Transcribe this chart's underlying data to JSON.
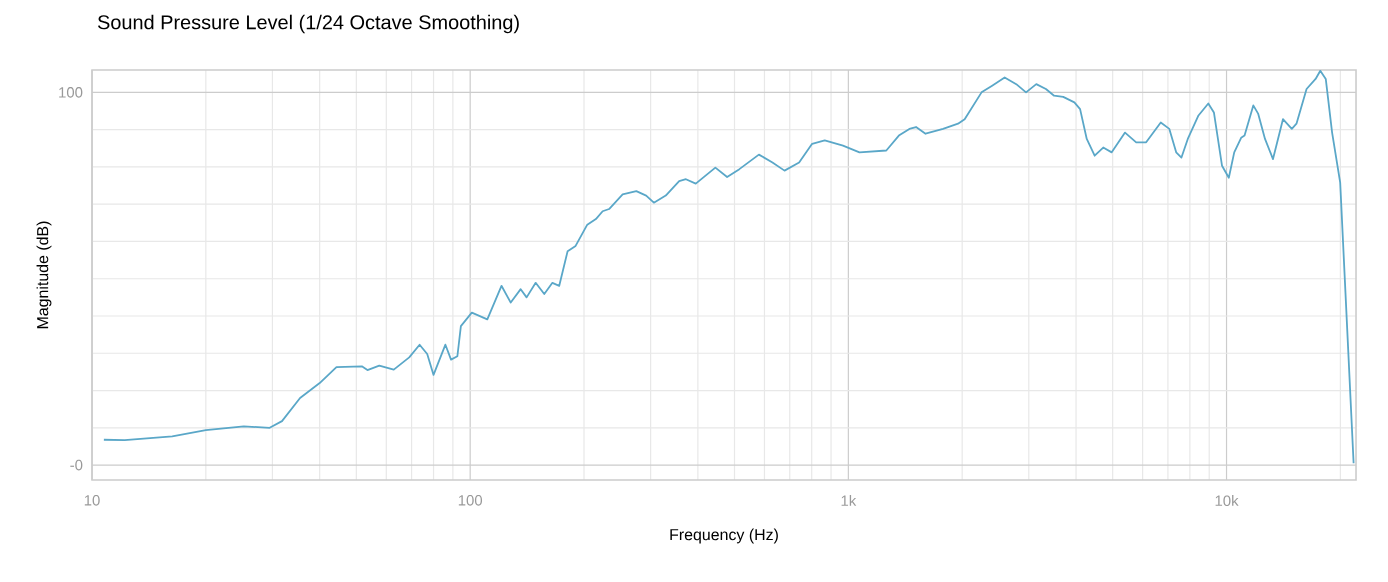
{
  "chart_data": {
    "type": "line",
    "title": "Sound Pressure Level (1/24 Octave Smoothing)",
    "xlabel": "Frequency (Hz)",
    "ylabel": "Magnitude (dB)",
    "log": "x",
    "grid": true,
    "xlim": [
      10,
      22000
    ],
    "ylim": [
      -4,
      106
    ],
    "xticks": [
      10,
      {
        "value": 20,
        "label": null
      },
      {
        "value": 30,
        "label": null
      },
      {
        "value": 40,
        "label": null
      },
      {
        "value": 50,
        "label": null
      },
      {
        "value": 60,
        "label": null
      },
      {
        "value": 70,
        "label": null
      },
      {
        "value": 80,
        "label": null
      },
      {
        "value": 90,
        "label": null
      },
      100,
      {
        "value": 200,
        "label": null
      },
      {
        "value": 300,
        "label": null
      },
      {
        "value": 400,
        "label": null
      },
      {
        "value": 500,
        "label": null
      },
      {
        "value": 600,
        "label": null
      },
      {
        "value": 700,
        "label": null
      },
      {
        "value": 800,
        "label": null
      },
      {
        "value": 900,
        "label": null
      },
      {
        "value": 1000,
        "label": "1k"
      },
      {
        "value": 2000,
        "label": null
      },
      {
        "value": 3000,
        "label": null
      },
      {
        "value": 4000,
        "label": null
      },
      {
        "value": 5000,
        "label": null
      },
      {
        "value": 6000,
        "label": null
      },
      {
        "value": 7000,
        "label": null
      },
      {
        "value": 8000,
        "label": null
      },
      {
        "value": 9000,
        "label": null
      },
      {
        "value": 10000,
        "label": "10k"
      },
      {
        "value": 20000,
        "label": null
      }
    ],
    "yticks": [
      {
        "value": 0,
        "label": "-0"
      },
      {
        "value": 10,
        "label": null
      },
      {
        "value": 20,
        "label": null
      },
      {
        "value": 30,
        "label": null
      },
      {
        "value": 40,
        "label": null
      },
      {
        "value": 50,
        "label": null
      },
      {
        "value": 60,
        "label": null
      },
      {
        "value": 70,
        "label": null
      },
      {
        "value": 80,
        "label": null
      },
      {
        "value": 90,
        "label": null
      },
      100
    ],
    "marker": "none",
    "line_style": "solid",
    "series": [
      {
        "color": "#5aa7c8",
        "x": [
          10.75,
          12.2,
          16.3,
          20,
          25.2,
          29.5,
          31.8,
          35.5,
          40,
          44.3,
          51.7,
          53.5,
          57.5,
          62.8,
          69,
          73.5,
          77,
          80,
          86,
          89,
          92.5,
          94.5,
          101,
          111,
          121,
          128,
          136,
          141,
          149,
          157,
          165,
          172,
          181,
          190,
          204,
          215,
          224,
          233,
          253,
          275,
          292,
          306,
          329,
          357,
          372,
          395,
          445,
          478,
          515,
          580,
          630,
          678,
          741,
          802,
          866,
          968,
          1070,
          1260,
          1360,
          1450,
          1510,
          1600,
          1780,
          1950,
          2030,
          2250,
          2400,
          2590,
          2780,
          2950,
          3140,
          3330,
          3500,
          3700,
          3960,
          4100,
          4270,
          4480,
          4720,
          4970,
          5390,
          5770,
          6130,
          6700,
          7060,
          7360,
          7600,
          7900,
          8430,
          8950,
          9260,
          9730,
          10140,
          10480,
          10930,
          11160,
          11770,
          12120,
          12640,
          13270,
          14100,
          14880,
          15310,
          16280,
          17200,
          17700,
          18300,
          19020,
          19980,
          20630,
          21680
        ],
        "values": [
          6.8,
          6.7,
          7.7,
          9.4,
          10.4,
          10,
          11.8,
          18,
          22,
          26.3,
          26.5,
          25.5,
          26.7,
          25.6,
          28.9,
          32.3,
          29.8,
          24.2,
          32.3,
          28.3,
          29.2,
          37.3,
          40.9,
          39.1,
          48.1,
          43.6,
          47.2,
          45,
          48.9,
          45.9,
          48.9,
          48.1,
          57.4,
          58.8,
          64.5,
          66,
          68.1,
          68.7,
          72.6,
          73.5,
          72.3,
          70.4,
          72.3,
          76.2,
          76.7,
          75.5,
          79.8,
          77.3,
          79.4,
          83.3,
          81.2,
          79,
          81.2,
          86.2,
          87.1,
          85.7,
          83.9,
          84.4,
          88.4,
          90.2,
          90.7,
          88.9,
          90.2,
          91.6,
          92.8,
          100,
          101.8,
          104,
          102.2,
          100,
          102.2,
          100.9,
          99.1,
          98.8,
          97.3,
          95.5,
          87.5,
          83,
          85.2,
          83.9,
          89.2,
          86.6,
          86.6,
          91.9,
          90.2,
          83.9,
          82.5,
          87.5,
          93.8,
          97,
          94.6,
          80.3,
          77.1,
          83.9,
          87.8,
          88.4,
          96.5,
          94.3,
          87.5,
          82.1,
          92.8,
          90.2,
          91.6,
          100.9,
          103.6,
          105.8,
          103.6,
          89.2,
          75.8,
          46.2,
          0.5
        ]
      }
    ]
  }
}
